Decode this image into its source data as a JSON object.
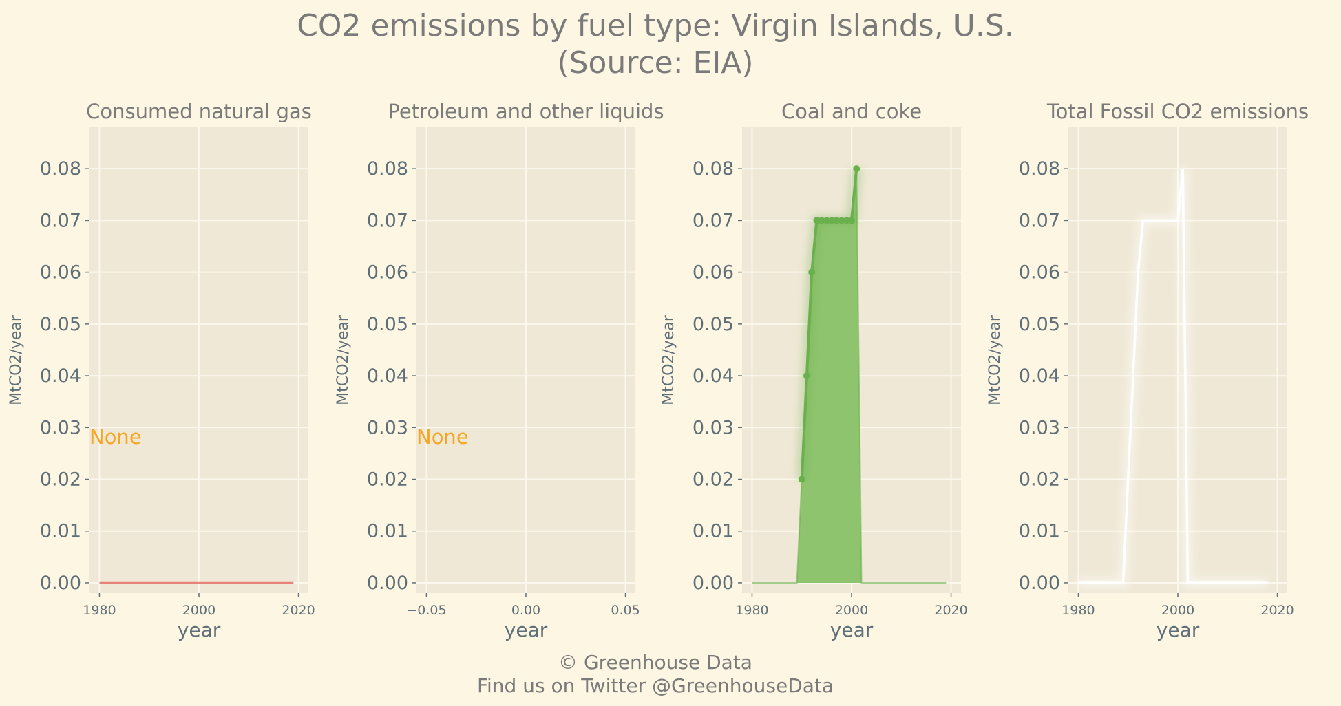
{
  "title_line1": "CO2 emissions by fuel type: Virgin Islands, U.S.",
  "title_line2": "(Source: EIA)",
  "footer_line1": "© Greenhouse Data",
  "footer_line2": "Find us on Twitter @GreenhouseData",
  "colors": {
    "background": "#fdf6e3",
    "plot_bg": "#efe8d6",
    "grid": "#fbf7ec",
    "gas_line": "#e8837a",
    "coal": "#6ab04c",
    "coal_fill": "#8fc46e",
    "total": "#ffffff",
    "none_label": "#f5a623"
  },
  "chart_data": [
    {
      "type": "line",
      "title": "Consumed natural gas",
      "xlabel": "year",
      "ylabel": "MtCO2/year",
      "xlim": [
        1978,
        2022
      ],
      "ylim": [
        -0.002,
        0.088
      ],
      "xticks": [
        1980,
        2000,
        2020
      ],
      "xtick_labels": [
        "1980",
        "2000",
        "2020"
      ],
      "yticks": [
        0.0,
        0.01,
        0.02,
        0.03,
        0.04,
        0.05,
        0.06,
        0.07,
        0.08
      ],
      "ytick_labels": [
        "0.00",
        "0.01",
        "0.02",
        "0.03",
        "0.04",
        "0.05",
        "0.06",
        "0.07",
        "0.08"
      ],
      "grid": true,
      "annotation": "None",
      "series": [
        {
          "x": [
            1980,
            2019
          ],
          "y": [
            0.0,
            0.0
          ],
          "style": "line",
          "color_key": "gas_line"
        }
      ]
    },
    {
      "type": "line",
      "title": "Petroleum and other liquids",
      "xlabel": "year",
      "ylabel": "MtCO2/year",
      "xlim": [
        -0.055,
        0.055
      ],
      "ylim": [
        -0.002,
        0.088
      ],
      "xticks": [
        -0.05,
        0.0,
        0.05
      ],
      "xtick_labels": [
        "−0.05",
        "0.00",
        "0.05"
      ],
      "yticks": [
        0.0,
        0.01,
        0.02,
        0.03,
        0.04,
        0.05,
        0.06,
        0.07,
        0.08
      ],
      "ytick_labels": [
        "0.00",
        "0.01",
        "0.02",
        "0.03",
        "0.04",
        "0.05",
        "0.06",
        "0.07",
        "0.08"
      ],
      "grid": true,
      "annotation": "None",
      "series": []
    },
    {
      "type": "area",
      "title": "Coal and coke",
      "xlabel": "year",
      "ylabel": "MtCO2/year",
      "xlim": [
        1978,
        2022
      ],
      "ylim": [
        -0.002,
        0.088
      ],
      "xticks": [
        1980,
        2000,
        2020
      ],
      "xtick_labels": [
        "1980",
        "2000",
        "2020"
      ],
      "yticks": [
        0.0,
        0.01,
        0.02,
        0.03,
        0.04,
        0.05,
        0.06,
        0.07,
        0.08
      ],
      "ytick_labels": [
        "0.00",
        "0.01",
        "0.02",
        "0.03",
        "0.04",
        "0.05",
        "0.06",
        "0.07",
        "0.08"
      ],
      "grid": true,
      "series": [
        {
          "x": [
            1980,
            1981,
            1982,
            1983,
            1984,
            1985,
            1986,
            1987,
            1988,
            1989,
            1990,
            1991,
            1992,
            1993,
            1994,
            1995,
            1996,
            1997,
            1998,
            1999,
            2000,
            2001,
            2002,
            2003,
            2004,
            2005,
            2006,
            2007,
            2008,
            2009,
            2010,
            2011,
            2012,
            2013,
            2014,
            2015,
            2016,
            2017,
            2018,
            2019
          ],
          "y": [
            0,
            0,
            0,
            0,
            0,
            0,
            0,
            0,
            0,
            0,
            0.02,
            0.04,
            0.06,
            0.07,
            0.07,
            0.07,
            0.07,
            0.07,
            0.07,
            0.07,
            0.07,
            0.08,
            0,
            0,
            0,
            0,
            0,
            0,
            0,
            0,
            0,
            0,
            0,
            0,
            0,
            0,
            0,
            0,
            0,
            0
          ],
          "style": "area",
          "color_key": "coal"
        }
      ]
    },
    {
      "type": "line",
      "title": "Total Fossil CO2 emissions",
      "xlabel": "year",
      "ylabel": "MtCO2/year",
      "xlim": [
        1978,
        2022
      ],
      "ylim": [
        -0.002,
        0.088
      ],
      "xticks": [
        1980,
        2000,
        2020
      ],
      "xtick_labels": [
        "1980",
        "2000",
        "2020"
      ],
      "yticks": [
        0.0,
        0.01,
        0.02,
        0.03,
        0.04,
        0.05,
        0.06,
        0.07,
        0.08
      ],
      "ytick_labels": [
        "0.00",
        "0.01",
        "0.02",
        "0.03",
        "0.04",
        "0.05",
        "0.06",
        "0.07",
        "0.08"
      ],
      "grid": true,
      "series": [
        {
          "x": [
            1980,
            1981,
            1982,
            1983,
            1984,
            1985,
            1986,
            1987,
            1988,
            1989,
            1990,
            1991,
            1992,
            1993,
            1994,
            1995,
            1996,
            1997,
            1998,
            1999,
            2000,
            2001,
            2002,
            2003,
            2004,
            2005,
            2006,
            2007,
            2008,
            2009,
            2010,
            2011,
            2012,
            2013,
            2014,
            2015,
            2016,
            2017,
            2018
          ],
          "y": [
            0,
            0,
            0,
            0,
            0,
            0,
            0,
            0,
            0,
            0,
            0.02,
            0.04,
            0.06,
            0.07,
            0.07,
            0.07,
            0.07,
            0.07,
            0.07,
            0.07,
            0.07,
            0.08,
            0,
            0,
            0,
            0,
            0,
            0,
            0,
            0,
            0,
            0,
            0,
            0,
            0,
            0,
            0,
            0,
            0
          ],
          "style": "line",
          "color_key": "total"
        }
      ]
    }
  ]
}
